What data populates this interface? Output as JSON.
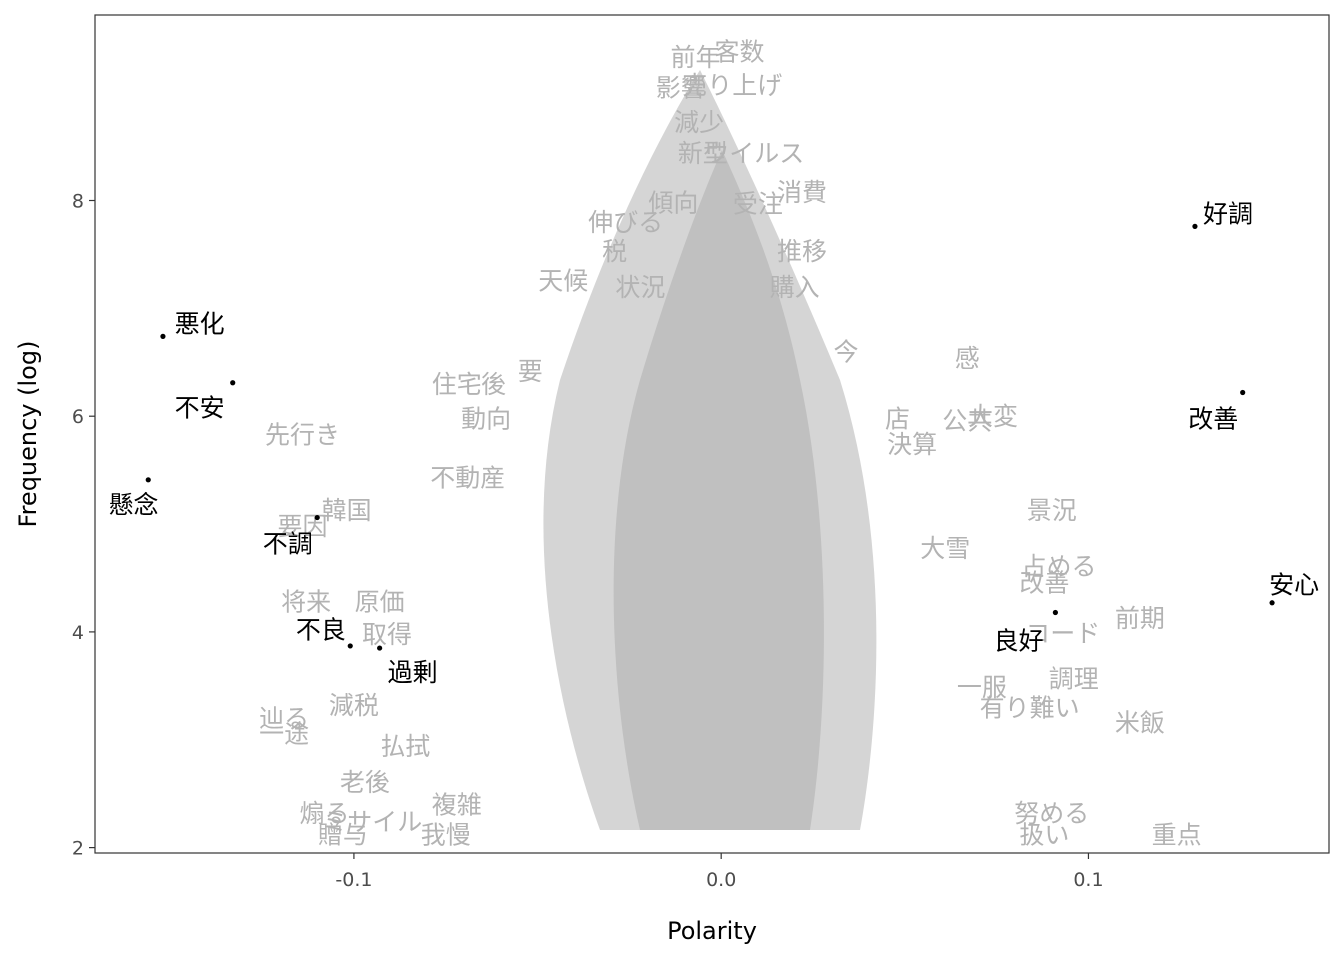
{
  "chart_data": {
    "type": "scatter",
    "title": "",
    "xlabel": "Polarity",
    "ylabel": "Frequency (log)",
    "xlim": [
      -0.1705,
      0.1655
    ],
    "ylim": [
      1.95,
      9.72
    ],
    "x_ticks": [
      {
        "value": -0.1,
        "label": "-0.1"
      },
      {
        "value": 0.0,
        "label": "0.0"
      },
      {
        "value": 0.1,
        "label": "0.1"
      }
    ],
    "y_ticks": [
      {
        "value": 2,
        "label": "2"
      },
      {
        "value": 4,
        "label": "4"
      },
      {
        "value": 6,
        "label": "6"
      },
      {
        "value": 8,
        "label": "8"
      }
    ],
    "grid": false,
    "legend": "none",
    "colors": {
      "background_words": "#b3b3b3",
      "highlight_words": "#000000",
      "axis": "#333333"
    },
    "highlighted_words": [
      {
        "word": "好調",
        "x": 0.129,
        "y": 7.76,
        "label_x": 0.138,
        "label_y": 7.88
      },
      {
        "word": "悪化",
        "x": -0.152,
        "y": 6.74,
        "label_x": -0.142,
        "label_y": 6.86
      },
      {
        "word": "改善",
        "x": 0.142,
        "y": 6.22,
        "label_x": 0.134,
        "label_y": 5.98
      },
      {
        "word": "不安",
        "x": -0.133,
        "y": 6.31,
        "label_x": -0.142,
        "label_y": 6.08
      },
      {
        "word": "懸念",
        "x": -0.156,
        "y": 5.41,
        "label_x": -0.16,
        "label_y": 5.18
      },
      {
        "word": "不調",
        "x": -0.11,
        "y": 5.06,
        "label_x": -0.118,
        "label_y": 4.82
      },
      {
        "word": "安心",
        "x": 0.15,
        "y": 4.27,
        "label_x": 0.156,
        "label_y": 4.44
      },
      {
        "word": "良好",
        "x": 0.091,
        "y": 4.18,
        "label_x": 0.081,
        "label_y": 3.92
      },
      {
        "word": "不良",
        "x": -0.101,
        "y": 3.87,
        "label_x": -0.109,
        "label_y": 4.02
      },
      {
        "word": "過剰",
        "x": -0.093,
        "y": 3.85,
        "label_x": -0.084,
        "label_y": 3.63
      }
    ],
    "background_words": [
      {
        "word": "前年",
        "x": -0.007,
        "y": 9.33
      },
      {
        "word": "客数",
        "x": 0.005,
        "y": 9.38
      },
      {
        "word": "影響",
        "x": -0.011,
        "y": 9.05
      },
      {
        "word": "売り上げ",
        "x": 0.003,
        "y": 9.07
      },
      {
        "word": "減少",
        "x": -0.006,
        "y": 8.73
      },
      {
        "word": "新型",
        "x": -0.005,
        "y": 8.44
      },
      {
        "word": "ウイルス",
        "x": 0.009,
        "y": 8.44
      },
      {
        "word": "消費",
        "x": 0.022,
        "y": 8.08
      },
      {
        "word": "傾向",
        "x": -0.013,
        "y": 7.98
      },
      {
        "word": "受注",
        "x": 0.01,
        "y": 7.97
      },
      {
        "word": "伸びる",
        "x": -0.026,
        "y": 7.8
      },
      {
        "word": "税",
        "x": -0.029,
        "y": 7.53
      },
      {
        "word": "推移",
        "x": 0.022,
        "y": 7.53
      },
      {
        "word": "天候",
        "x": -0.043,
        "y": 7.26
      },
      {
        "word": "状況",
        "x": -0.022,
        "y": 7.2
      },
      {
        "word": "購入",
        "x": 0.02,
        "y": 7.2
      },
      {
        "word": "今",
        "x": 0.034,
        "y": 6.6
      },
      {
        "word": "感",
        "x": 0.067,
        "y": 6.54
      },
      {
        "word": "住宅",
        "x": -0.072,
        "y": 6.3
      },
      {
        "word": "後",
        "x": -0.062,
        "y": 6.3
      },
      {
        "word": "要",
        "x": -0.052,
        "y": 6.42
      },
      {
        "word": "先行き",
        "x": -0.114,
        "y": 5.83
      },
      {
        "word": "動向",
        "x": -0.064,
        "y": 5.98
      },
      {
        "word": "店",
        "x": 0.048,
        "y": 5.98
      },
      {
        "word": "大変",
        "x": 0.074,
        "y": 6.0
      },
      {
        "word": "公共",
        "x": 0.067,
        "y": 5.96
      },
      {
        "word": "決算",
        "x": 0.052,
        "y": 5.74
      },
      {
        "word": "不動産",
        "x": -0.069,
        "y": 5.43
      },
      {
        "word": "韓国",
        "x": -0.102,
        "y": 5.13
      },
      {
        "word": "景況",
        "x": 0.09,
        "y": 5.13
      },
      {
        "word": "要因",
        "x": -0.114,
        "y": 4.98
      },
      {
        "word": "大雪",
        "x": 0.061,
        "y": 4.78
      },
      {
        "word": "占める",
        "x": 0.092,
        "y": 4.61
      },
      {
        "word": "将来",
        "x": -0.113,
        "y": 4.28
      },
      {
        "word": "原価",
        "x": -0.093,
        "y": 4.28
      },
      {
        "word": "前期",
        "x": 0.114,
        "y": 4.13
      },
      {
        "word": "コード",
        "x": 0.093,
        "y": 3.99
      },
      {
        "word": "取得",
        "x": -0.091,
        "y": 3.98
      },
      {
        "word": "減税",
        "x": -0.1,
        "y": 3.32
      },
      {
        "word": "一服",
        "x": 0.071,
        "y": 3.49
      },
      {
        "word": "有り難い",
        "x": 0.084,
        "y": 3.3
      },
      {
        "word": "米飯",
        "x": 0.114,
        "y": 3.16
      },
      {
        "word": "辿る",
        "x": -0.119,
        "y": 3.2
      },
      {
        "word": "一途",
        "x": -0.119,
        "y": 3.06
      },
      {
        "word": "払拭",
        "x": -0.086,
        "y": 2.94
      },
      {
        "word": "老後",
        "x": -0.097,
        "y": 2.61
      },
      {
        "word": "煽る",
        "x": -0.108,
        "y": 2.32
      },
      {
        "word": "ミサイル",
        "x": -0.095,
        "y": 2.24
      },
      {
        "word": "贈与",
        "x": -0.103,
        "y": 2.12
      },
      {
        "word": "我慢",
        "x": -0.075,
        "y": 2.12
      },
      {
        "word": "複雑",
        "x": -0.072,
        "y": 2.4
      },
      {
        "word": "努める",
        "x": 0.09,
        "y": 2.32
      },
      {
        "word": "重点",
        "x": 0.124,
        "y": 2.12
      },
      {
        "word": "扱い",
        "x": 0.088,
        "y": 2.12
      },
      {
        "word": "改善",
        "x": 0.088,
        "y": 4.46
      },
      {
        "word": "調理",
        "x": 0.096,
        "y": 3.57
      }
    ]
  }
}
